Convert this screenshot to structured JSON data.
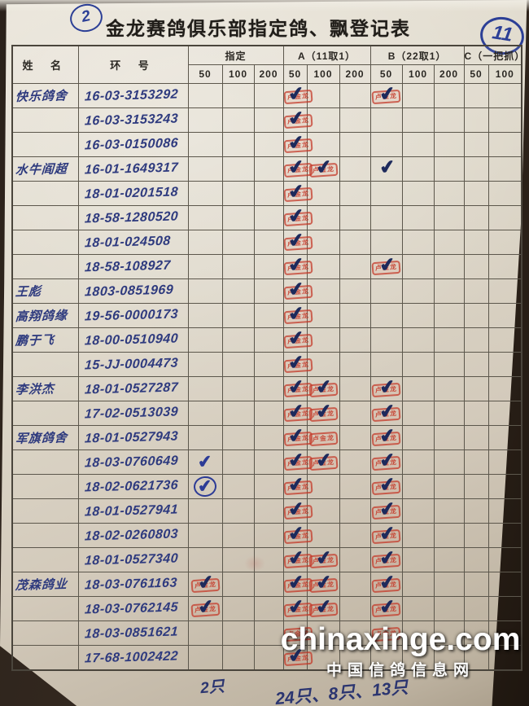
{
  "header": {
    "page_circle": "2",
    "title": "金龙赛鸽俱乐部指定鸽、飘登记表",
    "sheet_circle": "11"
  },
  "table": {
    "name_col": "姓 名",
    "ring_col": "环 号",
    "groups": [
      {
        "label": "指定",
        "subs": [
          "50",
          "100",
          "200"
        ]
      },
      {
        "label": "A（11取1）",
        "subs": [
          "50",
          "100",
          "200"
        ]
      },
      {
        "label": "B（22取1）",
        "subs": [
          "50",
          "100",
          "200"
        ]
      },
      {
        "label": "C（一把抓）",
        "subs": [
          "50",
          "100"
        ]
      }
    ]
  },
  "stamp_text": "卢金龙",
  "mark_legend": {
    "SC": "red stamp with dark pen checkmark",
    "S": "red stamp only",
    "C": "dark pen checkmark only",
    "PC": "blue pen checkmark",
    "PCO": "blue pen checkmark circled"
  },
  "rows": [
    {
      "name": "快乐鸽舍",
      "ring": "16-03-3153292",
      "marks": {
        "a50": "SC",
        "b50": "SC"
      }
    },
    {
      "name": "",
      "ring": "16-03-3153243",
      "marks": {
        "a50": "SC"
      }
    },
    {
      "name": "",
      "ring": "16-03-0150086",
      "marks": {
        "a50": "SC"
      }
    },
    {
      "name": "水牛阎超",
      "ring": "16-01-1649317",
      "marks": {
        "a50": "SC",
        "a100": "SC",
        "b50": "C"
      }
    },
    {
      "name": "",
      "ring": "18-01-0201518",
      "marks": {
        "a50": "SC"
      }
    },
    {
      "name": "",
      "ring": "18-58-1280520",
      "marks": {
        "a50": "SC"
      }
    },
    {
      "name": "",
      "ring": "18-01-024508",
      "marks": {
        "a50": "SC"
      }
    },
    {
      "name": "",
      "ring": "18-58-108927",
      "marks": {
        "a50": "SC",
        "b50": "SC"
      }
    },
    {
      "name": "王彪",
      "ring": "1803-0851969",
      "marks": {
        "a50": "SC"
      }
    },
    {
      "name": "高翔鸽缘",
      "ring": "19-56-0000173",
      "marks": {
        "a50": "SC"
      }
    },
    {
      "name": "鹏于飞",
      "ring": "18-00-0510940",
      "marks": {
        "a50": "SC"
      }
    },
    {
      "name": "",
      "ring": "15-JJ-0004473",
      "marks": {
        "a50": "SC"
      }
    },
    {
      "name": "李洪杰",
      "ring": "18-01-0527287",
      "marks": {
        "a50": "SC",
        "a100": "SC",
        "b50": "SC"
      }
    },
    {
      "name": "",
      "ring": "17-02-0513039",
      "marks": {
        "a50": "SC",
        "a100": "SC",
        "b50": "SC"
      }
    },
    {
      "name": "军旗鸽舍",
      "ring": "18-01-0527943",
      "marks": {
        "a50": "SC",
        "a100": "S",
        "b50": "SC"
      }
    },
    {
      "name": "",
      "ring": "18-03-0760649",
      "marks": {
        "zd50": "PC",
        "a50": "SC",
        "a100": "SC",
        "b50": "SC"
      }
    },
    {
      "name": "",
      "ring": "18-02-0621736",
      "marks": {
        "zd50": "PCO",
        "a50": "SC",
        "b50": "SC"
      }
    },
    {
      "name": "",
      "ring": "18-01-0527941",
      "marks": {
        "a50": "SC",
        "b50": "SC"
      }
    },
    {
      "name": "",
      "ring": "18-02-0260803",
      "marks": {
        "a50": "SC",
        "b50": "SC"
      }
    },
    {
      "name": "",
      "ring": "18-01-0527340",
      "marks": {
        "a50": "SC",
        "a100": "SC",
        "b50": "SC"
      }
    },
    {
      "name": "茂森鸽业",
      "ring": "18-03-0761163",
      "marks": {
        "zd50": "SC",
        "a50": "SC",
        "a100": "SC",
        "b50": "SC"
      }
    },
    {
      "name": "",
      "ring": "18-03-0762145",
      "marks": {
        "zd50": "SC",
        "a50": "SC",
        "a100": "SC",
        "b50": "SC"
      }
    },
    {
      "name": "",
      "ring": "18-03-0851621",
      "marks": {
        "a50": "S",
        "b50": "S"
      }
    },
    {
      "name": "",
      "ring": "17-68-1002422",
      "marks": {
        "a50": "SC"
      }
    }
  ],
  "footer_notes": {
    "designated_count": "2只",
    "totals": "24只、8只、13只"
  },
  "watermark": {
    "line1": "chinaxinge.com",
    "line2": "中国信鸽信息网"
  }
}
